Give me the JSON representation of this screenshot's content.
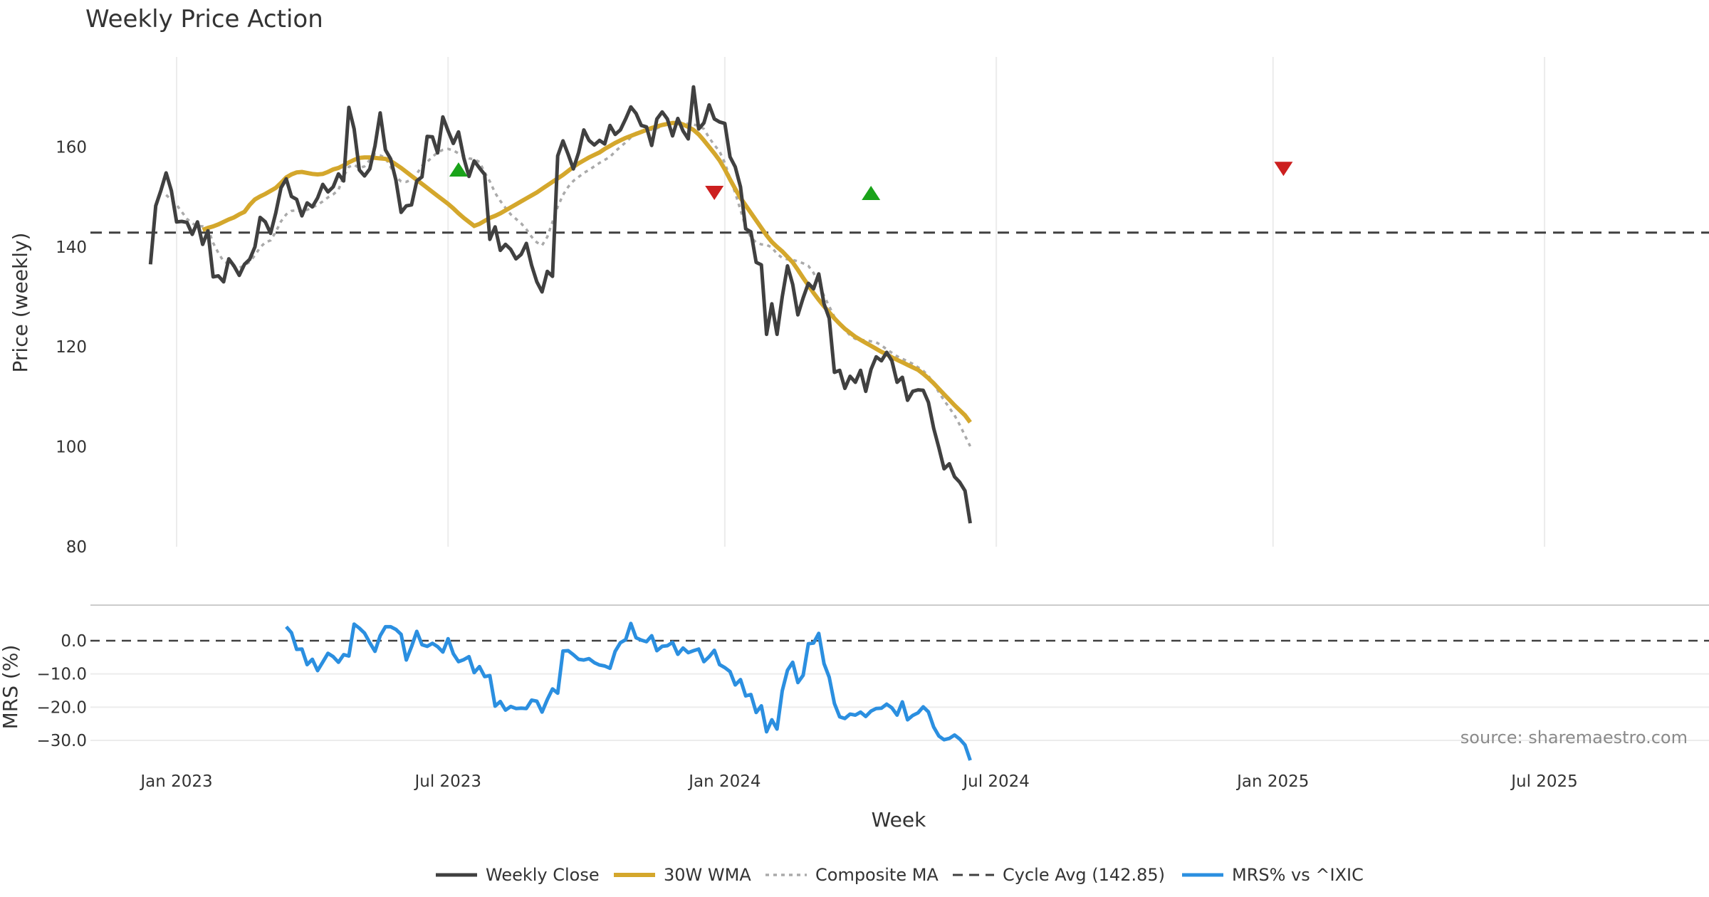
{
  "chart_data": {
    "type": "line",
    "title": "Weekly Price Action",
    "xlabel": "Week",
    "source": "source: sharemaestro.com",
    "x_ticks": [
      "Jan 2023",
      "Jul 2023",
      "Jan 2024",
      "Jul 2024",
      "Jan 2025",
      "Jul 2025"
    ],
    "x_tick_weeks": [
      5,
      57,
      110,
      162,
      215,
      267
    ],
    "week_range": [
      -11.5,
      298.5
    ],
    "price_panel": {
      "ylabel": "Price (weekly)",
      "ylim": [
        80,
        178
      ],
      "yticks": [
        80,
        100,
        120,
        140,
        160
      ],
      "cycle_avg": 142.85,
      "grid": "vertical",
      "weekly_close": [
        136.5,
        148.2,
        151.3,
        154.8,
        151.2,
        145.0,
        145.1,
        144.9,
        142.5,
        145.0,
        140.5,
        143.2,
        134.0,
        134.2,
        133.0,
        137.6,
        136.2,
        134.3,
        136.5,
        137.5,
        140.0,
        145.9,
        145.0,
        142.7,
        146.8,
        151.8,
        153.6,
        150.1,
        149.5,
        146.2,
        148.8,
        148.0,
        149.8,
        152.5,
        151.0,
        152.0,
        154.6,
        153.2,
        167.9,
        163.6,
        155.4,
        154.2,
        155.6,
        160.2,
        166.8,
        159.4,
        157.6,
        153.4,
        146.9,
        148.2,
        148.4,
        153.2,
        154.0,
        162.1,
        162.0,
        158.8,
        166.0,
        163.2,
        160.7,
        163.0,
        157.8,
        154.1,
        157.2,
        155.8,
        154.5,
        141.5,
        144.0,
        139.3,
        140.5,
        139.5,
        137.6,
        138.5,
        140.7,
        136.3,
        133.0,
        131.0,
        135.1,
        134.1,
        158.2,
        161.2,
        158.5,
        155.6,
        158.9,
        163.4,
        161.3,
        160.4,
        161.3,
        160.6,
        164.3,
        162.5,
        163.4,
        165.6,
        168.0,
        166.7,
        164.3,
        164.0,
        160.3,
        165.6,
        167.0,
        165.6,
        162.2,
        165.7,
        163.2,
        161.6,
        172.0,
        163.6,
        164.8,
        168.4,
        165.6,
        165.0,
        164.7,
        158.0,
        156.0,
        152.0,
        143.6,
        143.0,
        136.9,
        136.4,
        122.5,
        128.6,
        122.5,
        130.0,
        136.2,
        132.5,
        126.4,
        129.8,
        132.7,
        131.6,
        134.6,
        128.6,
        125.7,
        114.9,
        115.3,
        111.7,
        114.1,
        112.9,
        115.3,
        111.1,
        115.5,
        118.0,
        117.2,
        118.9,
        117.2,
        112.9,
        113.9,
        109.3,
        111.1,
        111.4,
        111.3,
        108.9,
        103.7,
        99.8,
        95.6,
        96.6,
        94.0,
        92.9,
        91.2,
        84.7
      ],
      "wma_30": [
        143.4,
        143.8,
        144.1,
        144.5,
        145.0,
        145.5,
        145.9,
        146.5,
        147.0,
        148.4,
        149.5,
        150.1,
        150.6,
        151.2,
        151.8,
        152.8,
        153.9,
        154.5,
        154.9,
        155.0,
        154.8,
        154.6,
        154.5,
        154.6,
        155.0,
        155.5,
        155.8,
        156.3,
        156.9,
        157.4,
        157.8,
        157.9,
        157.9,
        157.8,
        157.7,
        157.6,
        157.2,
        156.5,
        155.8,
        155.0,
        154.2,
        153.4,
        152.6,
        151.8,
        151.0,
        150.2,
        149.4,
        148.6,
        147.7,
        146.7,
        145.8,
        145.0,
        144.2,
        144.6,
        145.2,
        145.8,
        146.2,
        146.7,
        147.3,
        147.9,
        148.5,
        149.1,
        149.7,
        150.3,
        150.9,
        151.6,
        152.3,
        153.0,
        153.7,
        154.4,
        155.2,
        156.0,
        156.7,
        157.3,
        157.9,
        158.4,
        158.9,
        159.6,
        160.2,
        160.8,
        161.3,
        161.8,
        162.2,
        162.6,
        163.0,
        163.4,
        163.8,
        164.1,
        164.4,
        164.6,
        164.8,
        164.8,
        164.5,
        164.0,
        163.4,
        162.5,
        161.3,
        160.0,
        158.7,
        157.3,
        155.5,
        153.5,
        151.6,
        149.8,
        148.3,
        146.8,
        145.3,
        143.8,
        142.3,
        141.0,
        140.0,
        139.1,
        138.0,
        136.9,
        135.4,
        133.8,
        132.3,
        130.8,
        129.4,
        128.1,
        126.9,
        125.7,
        124.6,
        123.6,
        122.8,
        122.0,
        121.4,
        120.8,
        120.2,
        119.6,
        119.0,
        118.5,
        117.9,
        117.4,
        116.9,
        116.4,
        115.9,
        115.4,
        114.6,
        113.7,
        112.7,
        111.6,
        110.5,
        109.4,
        108.3,
        107.3,
        106.3,
        104.9
      ],
      "composite_ma": [
        150.4,
        149.4,
        148.4,
        147.0,
        145.6,
        144.7,
        144.2,
        144.1,
        143.7,
        140.8,
        138.8,
        137.1,
        136.6,
        136.1,
        135.8,
        136.3,
        137.0,
        138.3,
        139.9,
        140.9,
        141.3,
        143.0,
        145.1,
        146.5,
        147.2,
        147.3,
        147.0,
        147.4,
        147.9,
        148.4,
        149.1,
        149.9,
        150.5,
        151.4,
        154.1,
        156.0,
        156.4,
        155.8,
        156.1,
        157.4,
        158.5,
        158.3,
        157.8,
        156.0,
        154.0,
        153.1,
        153.0,
        153.5,
        154.6,
        156.2,
        157.0,
        158.0,
        158.9,
        159.4,
        159.6,
        159.3,
        158.7,
        158.2,
        157.7,
        157.5,
        157.0,
        154.9,
        153.1,
        150.8,
        149.2,
        147.8,
        146.5,
        145.6,
        144.7,
        143.5,
        142.0,
        140.9,
        140.3,
        142.0,
        145.0,
        148.0,
        150.4,
        152.0,
        153.2,
        154.0,
        154.8,
        155.4,
        156.1,
        156.8,
        157.4,
        158.0,
        159.1,
        160.0,
        160.9,
        161.9,
        162.8,
        163.2,
        163.5,
        163.4,
        163.7,
        164.3,
        164.6,
        164.8,
        164.9,
        164.8,
        164.6,
        164.5,
        164.2,
        163.6,
        161.8,
        160.4,
        159.1,
        156.8,
        153.7,
        150.8,
        147.4,
        144.0,
        141.9,
        140.9,
        140.5,
        140.4,
        139.9,
        138.6,
        137.8,
        137.5,
        137.4,
        137.1,
        136.7,
        136.2,
        134.8,
        132.7,
        130.2,
        128.1,
        126.0,
        124.6,
        123.4,
        122.3,
        121.6,
        121.4,
        121.3,
        121.1,
        120.9,
        120.3,
        119.5,
        118.8,
        118.1,
        117.6,
        117.1,
        116.6,
        115.9,
        115.2,
        114.2,
        112.6,
        110.9,
        109.3,
        107.8,
        106.3,
        104.4,
        102.2,
        100.1
      ]
    },
    "mrs_panel": {
      "ylabel": "MRS (%)",
      "ylim": [
        -36,
        9
      ],
      "yticks": [
        0.0,
        -10.0,
        -20.0,
        -30.0
      ],
      "ytick_labels": [
        "0.0",
        "−10.0",
        "−20.0",
        "−30.0"
      ],
      "zero_line": 0,
      "mrs_vs_ixic": [
        4.2,
        2.4,
        -2.6,
        -2.5,
        -7.2,
        -5.6,
        -9.0,
        -6.4,
        -3.8,
        -4.8,
        -6.5,
        -4.2,
        -4.6,
        5.0,
        3.8,
        2.3,
        -0.6,
        -3.2,
        1.5,
        4.2,
        4.2,
        3.4,
        1.9,
        -5.8,
        -1.8,
        2.8,
        -1.2,
        -1.7,
        -0.8,
        -1.8,
        -3.4,
        0.6,
        -3.9,
        -6.3,
        -5.7,
        -4.8,
        -9.6,
        -7.8,
        -10.8,
        -10.5,
        -19.7,
        -18.3,
        -20.9,
        -19.8,
        -20.4,
        -20.3,
        -20.4,
        -17.9,
        -18.2,
        -21.5,
        -17.7,
        -14.5,
        -15.8,
        -3.1,
        -3.0,
        -4.2,
        -5.6,
        -5.8,
        -5.4,
        -6.6,
        -7.3,
        -7.6,
        -8.3,
        -3.2,
        -0.6,
        0.3,
        5.2,
        0.9,
        0.2,
        -0.3,
        1.5,
        -3.0,
        -1.7,
        -1.5,
        -0.5,
        -4.1,
        -2.2,
        -3.6,
        -3.0,
        -2.5,
        -6.3,
        -4.8,
        -2.9,
        -7.2,
        -8.1,
        -9.3,
        -13.3,
        -11.7,
        -16.6,
        -16.2,
        -21.6,
        -19.6,
        -27.4,
        -23.8,
        -26.6,
        -15.1,
        -8.9,
        -6.5,
        -12.6,
        -10.4,
        -0.9,
        -0.7,
        2.2,
        -6.9,
        -11.0,
        -18.9,
        -22.9,
        -23.4,
        -22.1,
        -22.4,
        -21.5,
        -22.8,
        -21.2,
        -20.4,
        -20.3,
        -19.1,
        -20.2,
        -22.4,
        -18.4,
        -23.8,
        -22.5,
        -21.7,
        -19.9,
        -21.4,
        -26.0,
        -28.7,
        -29.8,
        -29.4,
        -28.4,
        -29.6,
        -31.4,
        -36.0
      ]
    },
    "signals": [
      {
        "type": "buy",
        "week": 59,
        "price": 155.5
      },
      {
        "type": "sell",
        "week": 108,
        "price": 150.8
      },
      {
        "type": "buy",
        "week": 138,
        "price": 150.8
      },
      {
        "type": "sell",
        "week": 217,
        "price": 155.6
      }
    ],
    "legend_position": "bottom-center",
    "legend": [
      "Weekly Close",
      "30W WMA",
      "Composite MA",
      "Cycle Avg (142.85)",
      "MRS% vs ^IXIC"
    ],
    "colors": {
      "close": "#404040",
      "wma": "#d4a72c",
      "composite": "#aaaaaa",
      "cycle": "#404040",
      "mrs": "#2b8fe0",
      "buy": "#1aa31a",
      "sell": "#cc1f1f",
      "grid": "#ececec",
      "axis_text": "#333333"
    }
  }
}
